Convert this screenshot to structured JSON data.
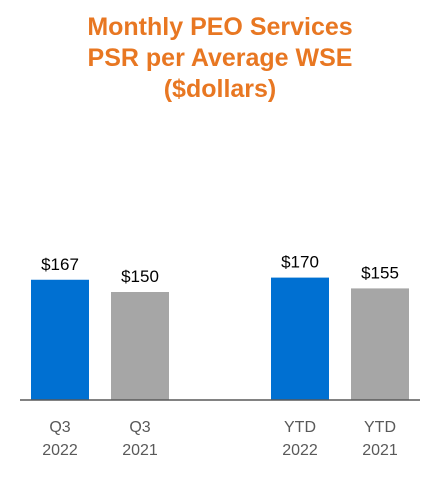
{
  "title": {
    "line1": "Monthly PEO Services",
    "line2": "PSR per Average WSE",
    "line3": "($dollars)"
  },
  "colors": {
    "title": "#E87722",
    "current": "#0070D2",
    "prior": "#A6A6A6",
    "baseline": "#595959",
    "value_text": "#000000",
    "tick_text": "#595959"
  },
  "chart_data": {
    "type": "bar",
    "title": "Monthly PEO Services PSR per Average WSE ($dollars)",
    "ylim": [
      0,
      200
    ],
    "grid": false,
    "legend": "none",
    "categories": [
      {
        "line1": "Q3",
        "line2": "2022"
      },
      {
        "line1": "Q3",
        "line2": "2021"
      },
      {
        "line1": "YTD",
        "line2": "2022"
      },
      {
        "line1": "YTD",
        "line2": "2021"
      }
    ],
    "values": [
      167,
      150,
      170,
      155
    ],
    "value_labels": [
      "$167",
      "$150",
      "$170",
      "$155"
    ],
    "bar_color_keys": [
      "current",
      "prior",
      "current",
      "prior"
    ]
  }
}
